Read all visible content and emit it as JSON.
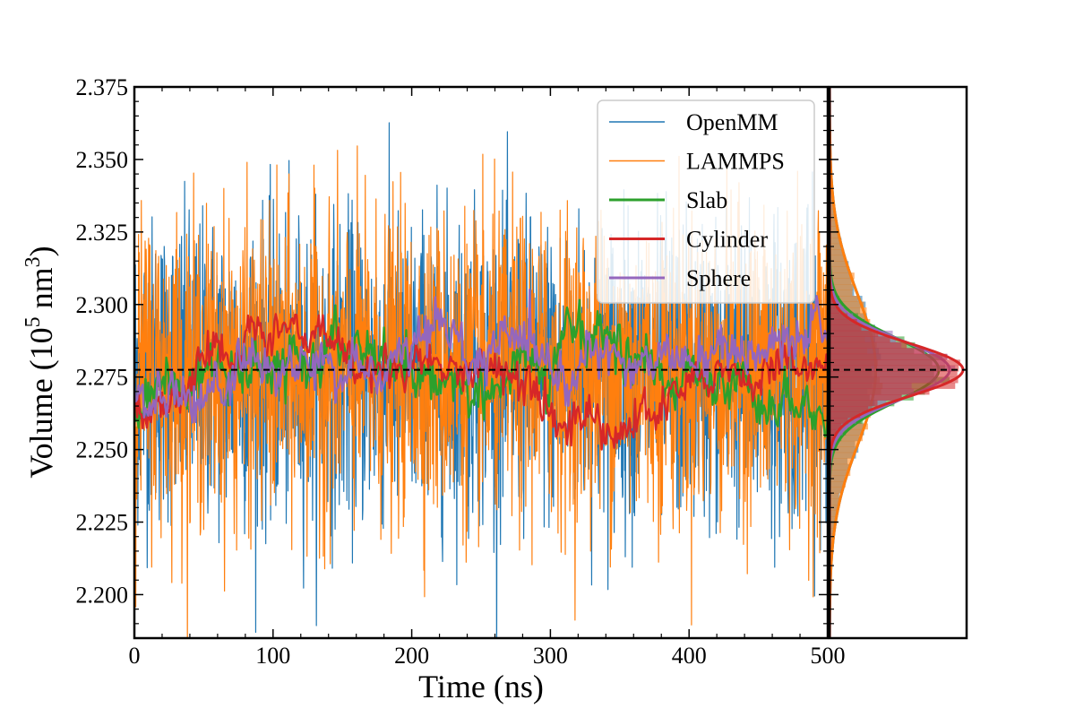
{
  "chart_data": {
    "type": "line",
    "xlabel": "Time (ns)",
    "ylabel_parts": {
      "pre": "Volume (10",
      "exp1": "5",
      "mid": " nm",
      "exp2": "3",
      "post": ")"
    },
    "xlim": [
      0,
      500
    ],
    "ylim": [
      2.185,
      2.375
    ],
    "xticks": [
      "0",
      "100",
      "200",
      "300",
      "400",
      "500"
    ],
    "yticks": [
      "2.200",
      "2.225",
      "2.250",
      "2.275",
      "2.300",
      "2.325",
      "2.350",
      "2.375"
    ],
    "reference_line": {
      "y": 2.2775,
      "style": "dashed",
      "color": "#000000"
    },
    "legend": {
      "position": "top-right",
      "entries": [
        "OpenMM",
        "LAMMPS",
        "Slab",
        "Cylinder",
        "Sphere"
      ]
    },
    "series": [
      {
        "name": "OpenMM",
        "color": "#1f77b4",
        "mean": 2.2775,
        "std": 0.026,
        "x_range": [
          0,
          500
        ]
      },
      {
        "name": "LAMMPS",
        "color": "#ff7f0e",
        "mean": 2.2775,
        "std": 0.026,
        "x_range": [
          0,
          500
        ]
      },
      {
        "name": "Slab",
        "color": "#2ca02c",
        "mean": 2.2775,
        "std": 0.011,
        "x_range": [
          0,
          500
        ]
      },
      {
        "name": "Cylinder",
        "color": "#d62728",
        "mean": 2.2775,
        "std": 0.009,
        "x_range": [
          0,
          500
        ]
      },
      {
        "name": "Sphere",
        "color": "#9467bd",
        "mean": 2.2775,
        "std": 0.01,
        "x_range": [
          0,
          500
        ]
      }
    ],
    "side_panel": {
      "type": "histogram",
      "orientation": "horizontal",
      "distributions": [
        {
          "name": "OpenMM",
          "mean": 2.2775,
          "std": 0.026,
          "color": "#1f77b4"
        },
        {
          "name": "LAMMPS",
          "mean": 2.2775,
          "std": 0.026,
          "color": "#ff7f0e"
        },
        {
          "name": "Slab",
          "mean": 2.2775,
          "std": 0.011,
          "color": "#2ca02c"
        },
        {
          "name": "Sphere",
          "mean": 2.2775,
          "std": 0.01,
          "color": "#9467bd"
        },
        {
          "name": "Cylinder",
          "mean": 2.2775,
          "std": 0.009,
          "color": "#d62728"
        }
      ]
    }
  }
}
